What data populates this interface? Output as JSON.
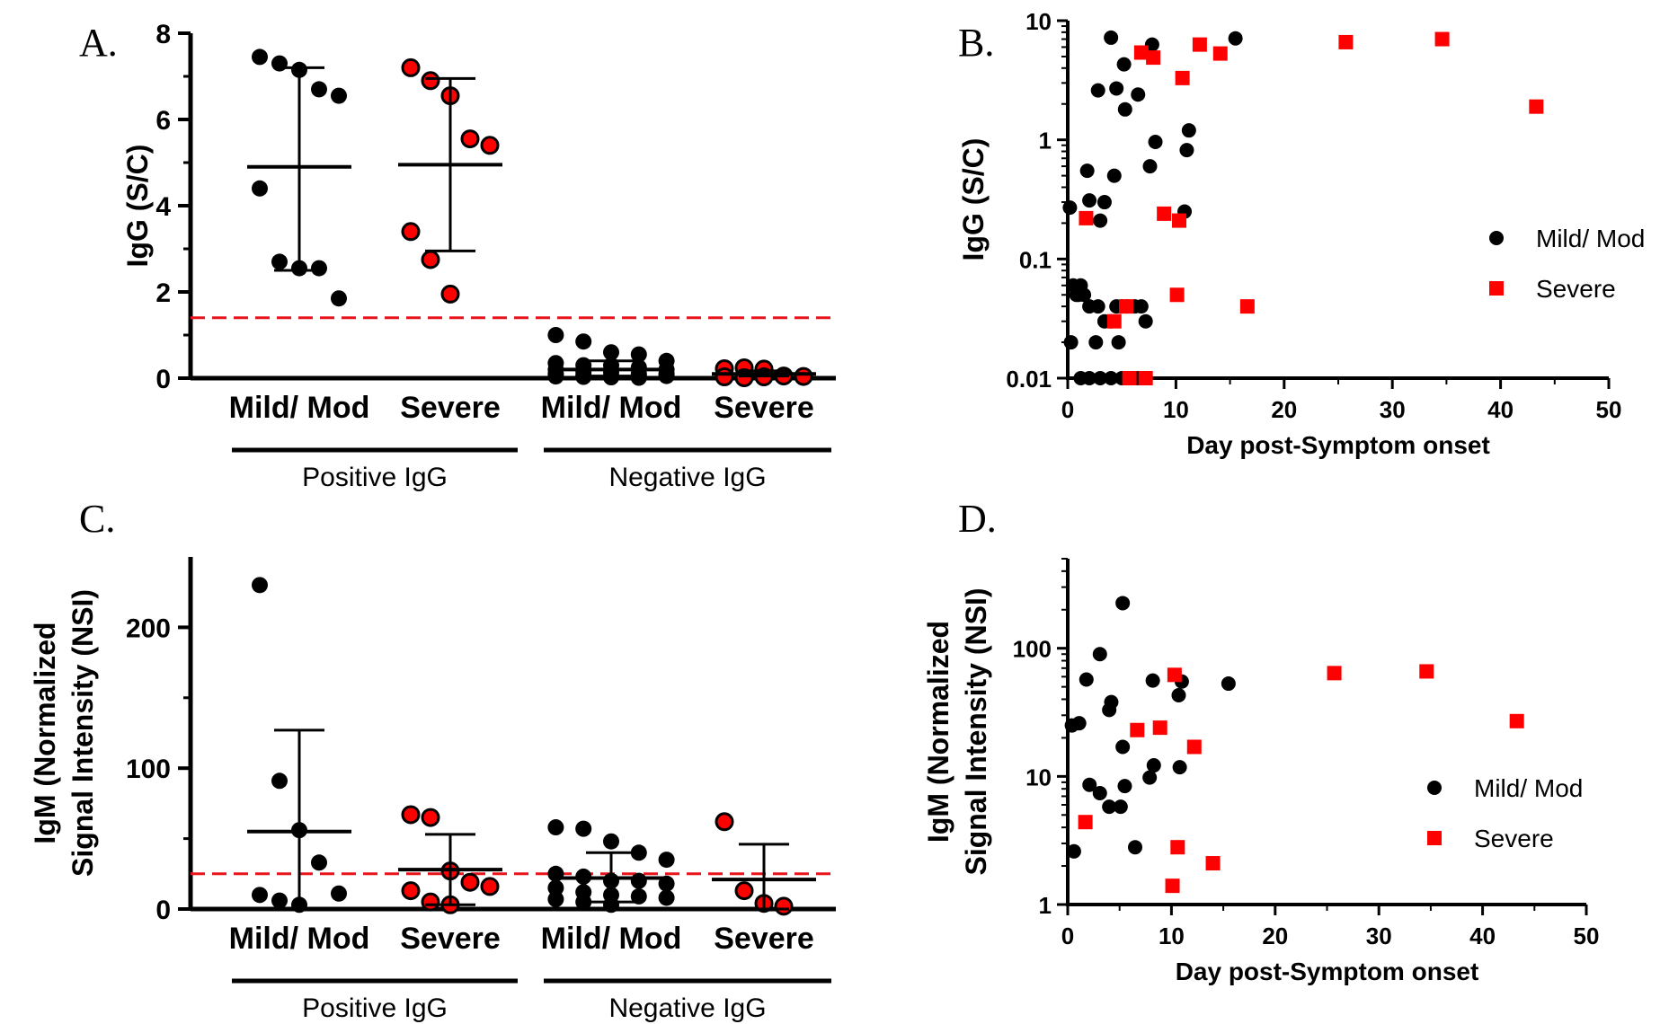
{
  "colors": {
    "mild": "#000000",
    "severe": "#ff0000",
    "severe_fill_strip": "#e8141c",
    "threshold": "#e8141c"
  },
  "panels": [
    {
      "letter": "A."
    },
    {
      "letter": "B."
    },
    {
      "letter": "C."
    },
    {
      "letter": "D."
    }
  ],
  "chart_data": [
    {
      "type": "scatter",
      "panel": "A.",
      "ylabel": "IgG (S/C)",
      "ylim": [
        0,
        8
      ],
      "yticks": [
        "0",
        "2",
        "4",
        "6",
        "8"
      ],
      "threshold": 1.4,
      "categories": [
        "Mild/ Mod",
        "Severe",
        "Mild/ Mod",
        "Severe"
      ],
      "groups": [
        {
          "label": "Positive IgG",
          "categories": [
            0,
            1
          ]
        },
        {
          "label": "Negative IgG",
          "categories": [
            2,
            3
          ]
        }
      ],
      "series": [
        {
          "category": 0,
          "color": "mild",
          "values": [
            7.45,
            7.3,
            7.15,
            6.7,
            6.55,
            4.4,
            2.7,
            2.55,
            2.55,
            1.85
          ],
          "mean": 4.9,
          "error": [
            2.5,
            7.2
          ]
        },
        {
          "category": 1,
          "color": "severe",
          "values": [
            7.2,
            6.9,
            6.55,
            5.55,
            5.4,
            3.4,
            2.75,
            1.95
          ],
          "mean": 4.95,
          "error": [
            2.95,
            6.95
          ]
        },
        {
          "category": 2,
          "color": "mild",
          "values": [
            1.0,
            0.85,
            0.6,
            0.55,
            0.4,
            0.35,
            0.3,
            0.3,
            0.25,
            0.2,
            0.2,
            0.15,
            0.15,
            0.1,
            0.1,
            0.1,
            0.08,
            0.06,
            0.05,
            0.05,
            0.04,
            0.03,
            0.02,
            0.01
          ],
          "mean": 0.2,
          "error": [
            0.05,
            0.4
          ]
        },
        {
          "category": 3,
          "color": "severe",
          "values": [
            0.22,
            0.24,
            0.21,
            0.05,
            0.04,
            0.03,
            0.01,
            0.03
          ],
          "mean": 0.1,
          "error": [
            0.05,
            0.17
          ]
        }
      ]
    },
    {
      "type": "scatter",
      "panel": "B.",
      "xlabel": "Day post-Symptom onset",
      "ylabel": "IgG (S/C)",
      "xlim": [
        0,
        50
      ],
      "ylim": [
        0.01,
        10
      ],
      "yscale": "log",
      "xticks": [
        "0",
        "10",
        "20",
        "30",
        "40",
        "50"
      ],
      "yticks": [
        "0.01",
        "0.1",
        "1",
        "10"
      ],
      "legend": {
        "position": "right",
        "entries": [
          "Mild/ Mod",
          "Severe"
        ]
      },
      "series": [
        {
          "name": "Mild/ Mod",
          "color": "mild",
          "marker": "circle",
          "x": [
            4.0,
            7.8,
            5.2,
            2.8,
            4.5,
            6.5,
            5.3,
            15.5,
            8.1,
            11.2,
            7.6,
            11.0,
            10.8,
            0.2,
            1.8,
            3.4,
            4.3,
            2.0,
            3.0,
            1.5,
            1.2,
            0.5,
            0.8,
            1.0,
            2.0,
            2.8,
            3.4,
            4.0,
            4.5,
            5.0,
            5.5,
            6.2,
            6.8,
            7.2,
            0.3,
            2.6,
            4.7,
            1.2,
            2.0,
            3.0,
            4.0,
            5.0,
            5.5,
            6.0,
            6.4
          ],
          "y": [
            7.2,
            6.3,
            4.3,
            2.6,
            2.7,
            2.4,
            1.8,
            7.1,
            0.96,
            1.2,
            0.6,
            0.82,
            0.25,
            0.27,
            0.55,
            0.3,
            0.5,
            0.31,
            0.21,
            0.05,
            0.06,
            0.06,
            0.05,
            0.05,
            0.04,
            0.04,
            0.03,
            0.03,
            0.04,
            0.04,
            0.04,
            0.04,
            0.04,
            0.03,
            0.02,
            0.02,
            0.02,
            0.01,
            0.01,
            0.01,
            0.01,
            0.01,
            0.01,
            0.01,
            0.01
          ]
        },
        {
          "name": "Severe",
          "color": "severe",
          "marker": "square",
          "x": [
            6.8,
            7.9,
            12.2,
            14.1,
            10.6,
            25.7,
            34.6,
            43.3,
            8.9,
            10.3,
            1.7,
            10.1,
            16.6,
            5.4,
            4.3,
            7.2,
            5.7
          ],
          "y": [
            5.4,
            4.9,
            6.3,
            5.3,
            3.3,
            6.6,
            7.0,
            1.9,
            0.24,
            0.21,
            0.22,
            0.05,
            0.04,
            0.04,
            0.03,
            0.01,
            0.01
          ]
        }
      ]
    },
    {
      "type": "scatter",
      "panel": "C.",
      "ylabel": "IgM (Normalized Signal Intensity (NSI)",
      "ylim": [
        0,
        250
      ],
      "yticks": [
        "0",
        "100",
        "200"
      ],
      "threshold": 25,
      "categories": [
        "Mild/ Mod",
        "Severe",
        "Mild/ Mod",
        "Severe"
      ],
      "groups": [
        {
          "label": "Positive IgG",
          "categories": [
            0,
            1
          ]
        },
        {
          "label": "Negative IgG",
          "categories": [
            2,
            3
          ]
        }
      ],
      "series": [
        {
          "category": 0,
          "color": "mild",
          "values": [
            230,
            91,
            56,
            33,
            11,
            10,
            6,
            3
          ],
          "mean": 55,
          "error": [
            0,
            127
          ]
        },
        {
          "category": 1,
          "color": "severe",
          "values": [
            67,
            65,
            27,
            19,
            16,
            13,
            5,
            3
          ],
          "mean": 28,
          "error": [
            3,
            53
          ]
        },
        {
          "category": 2,
          "color": "mild",
          "values": [
            58,
            57,
            48,
            40,
            35,
            25,
            23,
            20,
            20,
            18,
            15,
            12,
            10,
            9,
            8,
            7,
            5,
            3
          ],
          "mean": 22,
          "error": [
            5,
            40
          ]
        },
        {
          "category": 3,
          "color": "severe",
          "values": [
            62,
            13,
            4,
            2
          ],
          "mean": 21,
          "error": [
            0,
            46
          ]
        }
      ]
    },
    {
      "type": "scatter",
      "panel": "D.",
      "xlabel": "Day post-Symptom onset",
      "ylabel": "IgM (Normalized Signal Intensity (NSI)",
      "xlim": [
        0,
        50
      ],
      "ylim": [
        1,
        500
      ],
      "yscale": "log",
      "xticks": [
        "0",
        "10",
        "20",
        "30",
        "40",
        "50"
      ],
      "yticks": [
        "1",
        "10",
        "100"
      ],
      "legend": {
        "position": "right",
        "entries": [
          "Mild/ Mod",
          "Severe"
        ]
      },
      "series": [
        {
          "name": "Mild/ Mod",
          "color": "mild",
          "marker": "circle",
          "x": [
            5.3,
            3.1,
            1.8,
            11.0,
            15.5,
            8.2,
            4.2,
            10.7,
            4.0,
            0.4,
            1.1,
            5.3,
            8.3,
            2.1,
            3.1,
            7.9,
            10.8,
            5.5,
            4.0,
            5.1,
            0.6,
            6.5
          ],
          "y": [
            225,
            90,
            57,
            55,
            53,
            56,
            38,
            43,
            33,
            25,
            26,
            17,
            12.2,
            8.6,
            7.4,
            9.8,
            11.8,
            8.4,
            5.8,
            5.8,
            2.6,
            2.8
          ],
          "mean": 0
        },
        {
          "name": "Severe",
          "color": "severe",
          "marker": "square",
          "x": [
            10.3,
            25.7,
            34.6,
            43.3,
            6.7,
            8.9,
            12.2,
            1.7,
            10.6,
            14.0,
            10.1
          ],
          "y": [
            62,
            64,
            66,
            27,
            23,
            24,
            17,
            4.4,
            2.8,
            2.1,
            1.4
          ]
        }
      ]
    }
  ]
}
